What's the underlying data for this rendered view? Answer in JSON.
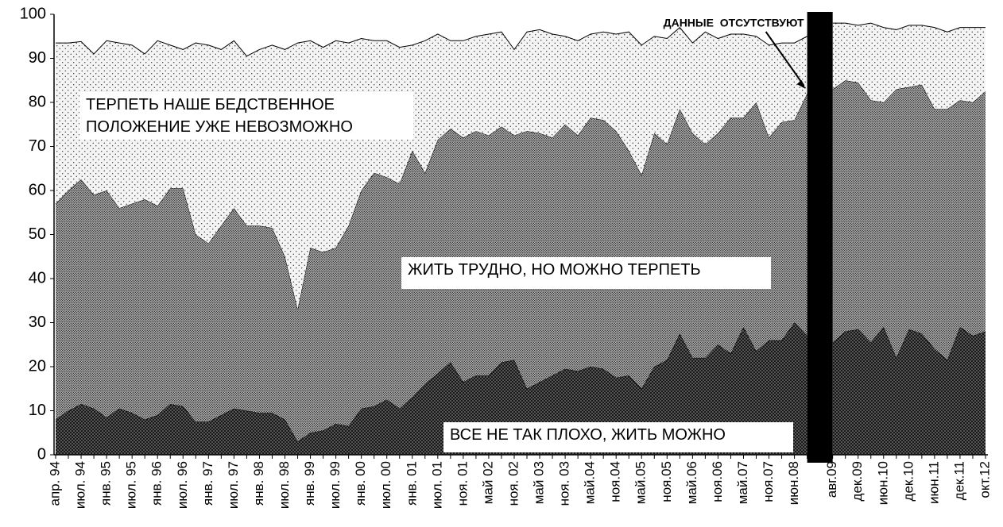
{
  "chart_data": {
    "type": "stacked-area",
    "annotation": "ДАННЫЕ  ОТСУТСТВУЮТ",
    "categories": [
      "апр. 94",
      null,
      "июл. 94",
      null,
      "янв. 95",
      null,
      "июл. 95",
      null,
      "янв. 96",
      null,
      "июл. 96",
      null,
      "янв. 97",
      null,
      "июл. 97",
      null,
      "янв. 98",
      null,
      "июл. 98",
      null,
      "янв. 99",
      null,
      "июл. 99",
      null,
      "янв. 00",
      null,
      "июл. 00",
      null,
      "янв. 01",
      null,
      "июл. 01",
      null,
      "ноя. 01",
      null,
      "май 02",
      null,
      "ноя. 02",
      null,
      "май 03",
      null,
      "ноя. 03",
      null,
      "май.04",
      null,
      "ноя.04",
      null,
      "май.05",
      null,
      "ноя.05",
      null,
      "май.06",
      null,
      "ноя.06",
      null,
      "май.07",
      null,
      "ноя.07",
      null,
      "июн.08",
      null,
      null,
      "авг.09",
      null,
      "дек.09",
      null,
      "июн.10",
      null,
      "дек.10",
      null,
      "июн.11",
      null,
      "дек.11",
      null,
      "окт.12"
    ],
    "series": [
      {
        "name": "ВСЕ НЕ ТАК ПЛОХО, ЖИТЬ МОЖНО",
        "color": "#555555",
        "values": [
          8,
          10,
          11.5,
          10.5,
          8.5,
          10.5,
          9.5,
          8,
          9,
          11.5,
          11,
          7.5,
          7.5,
          9,
          10.5,
          10,
          9.5,
          9.5,
          8,
          3,
          5,
          5.5,
          7,
          6.5,
          10.5,
          11,
          12.5,
          10.5,
          13,
          16,
          18.5,
          21,
          16.5,
          18,
          18,
          21,
          21.5,
          15,
          16.5,
          18,
          19.5,
          19,
          20,
          19.5,
          17.5,
          18,
          15,
          20,
          21.5,
          27.5,
          22,
          22,
          25,
          23,
          29,
          23.5,
          26,
          26,
          30,
          27,
          null,
          25.5,
          28,
          28.5,
          25.5,
          29,
          22,
          28.5,
          27.5,
          24,
          21.5,
          29,
          27,
          28
        ]
      },
      {
        "name": "ЖИТЬ ТРУДНО, НО МОЖНО ТЕРПЕТЬ",
        "color": "#b4b4b4",
        "values": [
          49,
          50,
          51,
          48.5,
          51.5,
          45.5,
          47.5,
          50,
          47.5,
          49,
          49.5,
          42.5,
          40.5,
          43,
          45.5,
          42,
          42.5,
          42,
          37,
          30,
          42,
          40.5,
          40,
          45.5,
          49.5,
          53,
          50.5,
          51,
          56,
          48,
          53,
          53,
          55.5,
          55.5,
          54.5,
          53.5,
          51,
          58.5,
          56.5,
          54,
          55.5,
          53.5,
          56.5,
          56.5,
          56,
          51,
          48.5,
          53,
          49,
          51,
          51,
          48.5,
          48,
          53.5,
          47.5,
          56.5,
          46,
          49.5,
          46,
          55,
          null,
          57.5,
          57,
          56,
          55,
          51,
          61,
          55,
          56.5,
          54.5,
          57,
          51.5,
          53,
          54.5
        ]
      },
      {
        "name": "ТЕРПЕТЬ НАШЕ БЕДСТВЕННОЕ ПОЛОЖЕНИЕ УЖЕ НЕВОЗМОЖНО",
        "color": "#f4f4f4",
        "values": [
          36.5,
          33.5,
          31.3,
          32,
          34,
          37.5,
          36,
          33,
          37.5,
          32.5,
          31.5,
          43.5,
          45,
          40,
          38,
          38.5,
          40,
          41.5,
          47,
          60.5,
          47,
          46.5,
          47,
          41.5,
          34.5,
          30,
          31,
          31,
          24,
          30,
          24,
          20,
          22,
          21.5,
          23,
          21.5,
          19.5,
          22.5,
          23.5,
          23.5,
          20,
          21.5,
          19,
          20,
          22,
          27,
          29.5,
          22,
          24,
          18.5,
          20.5,
          25.5,
          21.5,
          19,
          19,
          15,
          21,
          18,
          17.5,
          13,
          null,
          15,
          13,
          13,
          17.5,
          17,
          13.5,
          14,
          13.5,
          18.5,
          17.5,
          16.5,
          17,
          14.5
        ]
      }
    ],
    "ylim": [
      0,
      100
    ],
    "yticks": [
      0,
      10,
      20,
      30,
      40,
      50,
      60,
      70,
      80,
      90,
      100
    ],
    "grid": false
  }
}
